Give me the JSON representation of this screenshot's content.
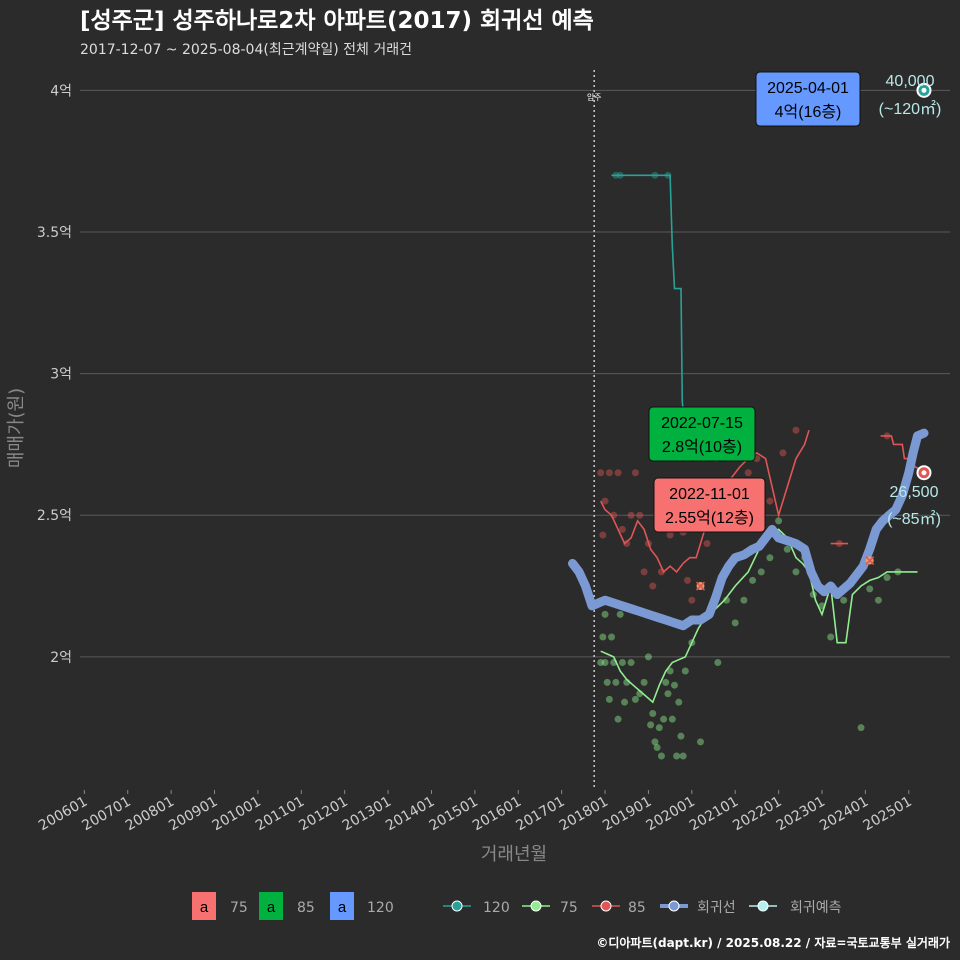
{
  "title": "[성주군] 성주하나로2차 아파트(2017) 회귀선 예측",
  "subtitle": "2017-12-07 ~ 2025-08-04(최근계약일) 전체 거래건",
  "caption": "©디아파트(dapt.kr) / 2025.08.22 / 자료=국토교통부 실거래가",
  "chart_data": {
    "type": "scatter",
    "xlabel": "거래년월",
    "ylabel": "매매가(원)",
    "xlim": [
      2005.9,
      2025.95
    ],
    "ylim": [
      1.53,
      4.1
    ],
    "x_ticks": [
      {
        "value": 2006.0,
        "label": "200601"
      },
      {
        "value": 2007.0,
        "label": "200701"
      },
      {
        "value": 2008.0,
        "label": "200801"
      },
      {
        "value": 2009.0,
        "label": "200901"
      },
      {
        "value": 2010.0,
        "label": "201001"
      },
      {
        "value": 2011.0,
        "label": "201101"
      },
      {
        "value": 2012.0,
        "label": "201201"
      },
      {
        "value": 2013.0,
        "label": "201301"
      },
      {
        "value": 2014.0,
        "label": "201401"
      },
      {
        "value": 2015.0,
        "label": "201501"
      },
      {
        "value": 2016.0,
        "label": "201601"
      },
      {
        "value": 2017.0,
        "label": "201701"
      },
      {
        "value": 2018.0,
        "label": "201801"
      },
      {
        "value": 2019.0,
        "label": "201901"
      },
      {
        "value": 2020.0,
        "label": "202001"
      },
      {
        "value": 2021.0,
        "label": "202101"
      },
      {
        "value": 2022.0,
        "label": "202201"
      },
      {
        "value": 2023.0,
        "label": "202301"
      },
      {
        "value": 2024.0,
        "label": "202401"
      },
      {
        "value": 2025.0,
        "label": "202501"
      }
    ],
    "y_ticks": [
      {
        "value": 2.0,
        "label": "2억"
      },
      {
        "value": 2.5,
        "label": "2.5억"
      },
      {
        "value": 3.0,
        "label": "3억"
      },
      {
        "value": 3.5,
        "label": "3.5억"
      },
      {
        "value": 4.0,
        "label": "4억"
      }
    ],
    "move_in": {
      "x": 2017.75,
      "label": "입주"
    },
    "series": [
      {
        "name": "120",
        "color": "#2aa198",
        "line": [
          [
            2018.15,
            3.7
          ],
          [
            2018.3,
            3.7
          ],
          [
            2019.1,
            3.7
          ],
          [
            2019.5,
            3.7
          ],
          [
            2019.55,
            3.45
          ],
          [
            2019.6,
            3.3
          ],
          [
            2019.75,
            3.3
          ],
          [
            2019.78,
            2.9
          ],
          [
            2019.85,
            2.8
          ]
        ],
        "points": [
          [
            2018.25,
            3.7
          ],
          [
            2018.35,
            3.7
          ],
          [
            2019.15,
            3.7
          ],
          [
            2019.45,
            3.7
          ]
        ]
      },
      {
        "name": "75",
        "color": "#90ee90",
        "line": [
          [
            2017.9,
            2.02
          ],
          [
            2018.05,
            2.01
          ],
          [
            2018.2,
            2.0
          ],
          [
            2018.35,
            1.95
          ],
          [
            2018.5,
            1.92
          ],
          [
            2018.65,
            1.9
          ],
          [
            2018.8,
            1.88
          ],
          [
            2018.95,
            1.86
          ],
          [
            2019.1,
            1.84
          ],
          [
            2019.25,
            1.9
          ],
          [
            2019.4,
            1.95
          ],
          [
            2019.55,
            1.98
          ],
          [
            2019.7,
            1.99
          ],
          [
            2019.85,
            2.0
          ],
          [
            2020.0,
            2.05
          ],
          [
            2020.15,
            2.1
          ],
          [
            2020.35,
            2.15
          ],
          [
            2020.55,
            2.17
          ],
          [
            2020.75,
            2.2
          ],
          [
            2021.0,
            2.25
          ],
          [
            2021.3,
            2.3
          ],
          [
            2021.55,
            2.38
          ],
          [
            2021.75,
            2.43
          ],
          [
            2022.0,
            2.45
          ],
          [
            2022.2,
            2.42
          ],
          [
            2022.4,
            2.35
          ],
          [
            2022.55,
            2.33
          ],
          [
            2022.7,
            2.3
          ],
          [
            2022.85,
            2.2
          ],
          [
            2023.0,
            2.15
          ],
          [
            2023.2,
            2.25
          ],
          [
            2023.35,
            2.05
          ],
          [
            2023.55,
            2.05
          ],
          [
            2023.7,
            2.22
          ],
          [
            2023.9,
            2.25
          ],
          [
            2024.1,
            2.27
          ],
          [
            2024.3,
            2.28
          ],
          [
            2024.5,
            2.3
          ],
          [
            2024.75,
            2.3
          ],
          [
            2025.0,
            2.3
          ],
          [
            2025.2,
            2.3
          ]
        ],
        "points": [
          [
            2017.9,
            1.98
          ],
          [
            2017.95,
            2.07
          ],
          [
            2018.0,
            2.15
          ],
          [
            2018.0,
            1.98
          ],
          [
            2018.05,
            1.91
          ],
          [
            2018.1,
            1.85
          ],
          [
            2018.15,
            2.07
          ],
          [
            2018.2,
            1.98
          ],
          [
            2018.25,
            1.91
          ],
          [
            2018.3,
            1.78
          ],
          [
            2018.35,
            2.15
          ],
          [
            2018.4,
            1.98
          ],
          [
            2018.45,
            1.84
          ],
          [
            2018.5,
            1.91
          ],
          [
            2018.6,
            1.98
          ],
          [
            2018.7,
            1.85
          ],
          [
            2018.8,
            1.87
          ],
          [
            2018.9,
            1.91
          ],
          [
            2019.0,
            2.0
          ],
          [
            2019.05,
            1.76
          ],
          [
            2019.1,
            1.8
          ],
          [
            2019.15,
            1.7
          ],
          [
            2019.2,
            1.68
          ],
          [
            2019.25,
            1.75
          ],
          [
            2019.3,
            1.65
          ],
          [
            2019.35,
            1.78
          ],
          [
            2019.4,
            1.91
          ],
          [
            2019.45,
            1.87
          ],
          [
            2019.5,
            1.95
          ],
          [
            2019.55,
            1.78
          ],
          [
            2019.6,
            1.9
          ],
          [
            2019.65,
            1.65
          ],
          [
            2019.7,
            1.84
          ],
          [
            2019.75,
            1.72
          ],
          [
            2019.8,
            1.65
          ],
          [
            2019.85,
            1.95
          ],
          [
            2020.0,
            2.05
          ],
          [
            2020.2,
            1.7
          ],
          [
            2020.4,
            2.15
          ],
          [
            2020.6,
            1.98
          ],
          [
            2020.8,
            2.2
          ],
          [
            2021.0,
            2.12
          ],
          [
            2021.2,
            2.2
          ],
          [
            2021.4,
            2.27
          ],
          [
            2021.6,
            2.3
          ],
          [
            2021.8,
            2.35
          ],
          [
            2022.0,
            2.48
          ],
          [
            2022.2,
            2.38
          ],
          [
            2022.4,
            2.3
          ],
          [
            2022.6,
            2.35
          ],
          [
            2022.8,
            2.22
          ],
          [
            2023.0,
            2.18
          ],
          [
            2023.2,
            2.07
          ],
          [
            2023.5,
            2.2
          ],
          [
            2023.9,
            1.75
          ],
          [
            2024.1,
            2.24
          ],
          [
            2024.3,
            2.2
          ],
          [
            2024.5,
            2.28
          ],
          [
            2024.75,
            2.3
          ]
        ]
      },
      {
        "name": "85",
        "color": "#e05555",
        "line": [
          [
            2017.9,
            2.55
          ],
          [
            2018.0,
            2.52
          ],
          [
            2018.15,
            2.5
          ],
          [
            2018.3,
            2.45
          ],
          [
            2018.45,
            2.4
          ],
          [
            2018.6,
            2.42
          ],
          [
            2018.75,
            2.48
          ],
          [
            2018.9,
            2.45
          ],
          [
            2019.05,
            2.38
          ],
          [
            2019.2,
            2.35
          ],
          [
            2019.35,
            2.3
          ],
          [
            2019.5,
            2.32
          ],
          [
            2019.65,
            2.3
          ],
          [
            2019.8,
            2.33
          ],
          [
            2019.95,
            2.35
          ],
          [
            2020.1,
            2.35
          ],
          [
            2020.3,
            2.45
          ],
          [
            2020.5,
            2.5
          ],
          [
            2020.7,
            2.58
          ],
          [
            2020.9,
            2.63
          ],
          [
            2021.1,
            2.67
          ],
          [
            2021.3,
            2.7
          ],
          [
            2021.5,
            2.72
          ],
          [
            2021.7,
            2.7
          ],
          [
            2021.85,
            2.6
          ],
          [
            2022.0,
            2.5
          ],
          [
            2022.2,
            2.6
          ],
          [
            2022.4,
            2.7
          ],
          [
            2022.6,
            2.75
          ],
          [
            2022.7,
            2.8
          ]
        ],
        "line2": [
          [
            2023.2,
            2.4
          ],
          [
            2023.6,
            2.4
          ]
        ],
        "line3": [
          [
            2024.35,
            2.78
          ],
          [
            2024.6,
            2.78
          ],
          [
            2024.65,
            2.75
          ],
          [
            2024.85,
            2.75
          ],
          [
            2024.9,
            2.7
          ],
          [
            2025.05,
            2.7
          ],
          [
            2025.15,
            2.67
          ],
          [
            2025.3,
            2.66
          ]
        ],
        "points": [
          [
            2017.9,
            2.65
          ],
          [
            2017.95,
            2.43
          ],
          [
            2018.0,
            2.55
          ],
          [
            2018.1,
            2.65
          ],
          [
            2018.2,
            2.5
          ],
          [
            2018.3,
            2.65
          ],
          [
            2018.4,
            2.45
          ],
          [
            2018.5,
            2.4
          ],
          [
            2018.6,
            2.5
          ],
          [
            2018.7,
            2.65
          ],
          [
            2018.8,
            2.5
          ],
          [
            2018.9,
            2.3
          ],
          [
            2019.0,
            2.4
          ],
          [
            2019.1,
            2.25
          ],
          [
            2019.2,
            2.47
          ],
          [
            2019.3,
            2.3
          ],
          [
            2019.4,
            2.5
          ],
          [
            2019.5,
            2.43
          ],
          [
            2019.6,
            2.45
          ],
          [
            2019.7,
            2.55
          ],
          [
            2019.8,
            2.44
          ],
          [
            2019.9,
            2.27
          ],
          [
            2020.0,
            2.2
          ],
          [
            2020.2,
            2.25
          ],
          [
            2020.35,
            2.4
          ],
          [
            2020.55,
            2.7
          ],
          [
            2020.8,
            2.6
          ],
          [
            2021.0,
            2.62
          ],
          [
            2021.3,
            2.65
          ],
          [
            2021.5,
            2.7
          ],
          [
            2021.8,
            2.55
          ],
          [
            2022.1,
            2.72
          ],
          [
            2022.4,
            2.8
          ],
          [
            2023.4,
            2.4
          ],
          [
            2024.5,
            2.78
          ]
        ]
      }
    ],
    "regression": {
      "name": "회귀선",
      "color": "#7b9ad4",
      "points": [
        [
          2017.25,
          2.33
        ],
        [
          2017.4,
          2.3
        ],
        [
          2017.55,
          2.25
        ],
        [
          2017.7,
          2.18
        ],
        [
          2017.85,
          2.19
        ],
        [
          2018.0,
          2.2
        ],
        [
          2018.2,
          2.19
        ],
        [
          2018.4,
          2.18
        ],
        [
          2018.6,
          2.17
        ],
        [
          2018.8,
          2.16
        ],
        [
          2019.0,
          2.15
        ],
        [
          2019.2,
          2.14
        ],
        [
          2019.4,
          2.13
        ],
        [
          2019.6,
          2.12
        ],
        [
          2019.8,
          2.11
        ],
        [
          2020.0,
          2.13
        ],
        [
          2020.2,
          2.13
        ],
        [
          2020.4,
          2.15
        ],
        [
          2020.55,
          2.21
        ],
        [
          2020.7,
          2.28
        ],
        [
          2020.85,
          2.32
        ],
        [
          2021.0,
          2.35
        ],
        [
          2021.2,
          2.36
        ],
        [
          2021.4,
          2.38
        ],
        [
          2021.55,
          2.39
        ],
        [
          2021.7,
          2.42
        ],
        [
          2021.85,
          2.45
        ],
        [
          2022.0,
          2.42
        ],
        [
          2022.2,
          2.41
        ],
        [
          2022.4,
          2.4
        ],
        [
          2022.6,
          2.38
        ],
        [
          2022.75,
          2.3
        ],
        [
          2022.9,
          2.25
        ],
        [
          2023.05,
          2.23
        ],
        [
          2023.2,
          2.25
        ],
        [
          2023.35,
          2.22
        ],
        [
          2023.5,
          2.24
        ],
        [
          2023.65,
          2.26
        ],
        [
          2023.8,
          2.29
        ],
        [
          2023.95,
          2.32
        ],
        [
          2024.1,
          2.38
        ],
        [
          2024.25,
          2.45
        ],
        [
          2024.4,
          2.48
        ],
        [
          2024.55,
          2.5
        ],
        [
          2024.7,
          2.52
        ],
        [
          2024.85,
          2.57
        ],
        [
          2025.0,
          2.65
        ],
        [
          2025.1,
          2.72
        ],
        [
          2025.2,
          2.78
        ],
        [
          2025.35,
          2.79
        ]
      ]
    },
    "forecast_points": [
      {
        "series": "120",
        "x": 2025.35,
        "y": 4.0,
        "color": "#2aa198"
      },
      {
        "series": "85",
        "x": 2025.35,
        "y": 2.65,
        "color": "#e05555"
      }
    ],
    "crosses": [
      [
        2020.2,
        2.25
      ],
      [
        2024.1,
        2.34
      ]
    ],
    "callouts": [
      {
        "date": "2025-04-01",
        "value": "4억(16층)",
        "series": "120",
        "fill": "#6699ff",
        "x": 2025.25,
        "y": 4.0
      },
      {
        "date": "2022-07-15",
        "value": "2.8억(10층)",
        "series": "85",
        "fill": "#00b140",
        "x": 2022.55,
        "y": 2.8
      },
      {
        "date": "2022-11-01",
        "value": "2.55억(12층)",
        "series": "75",
        "fill": "#f87171",
        "x": 2022.85,
        "y": 2.55
      }
    ],
    "side_labels": [
      {
        "price": "40,000",
        "area": "(~120㎡)",
        "x": 2025.35,
        "y": 4.0
      },
      {
        "price": "26,500",
        "area": "(~85㎡)",
        "x": 2025.35,
        "y": 2.65
      }
    ],
    "legend_fill": [
      {
        "label": "75",
        "glyph": "a",
        "color": "#f87171"
      },
      {
        "label": "85",
        "glyph": "a",
        "color": "#00b140"
      },
      {
        "label": "120",
        "glyph": "a",
        "color": "#6699ff"
      }
    ],
    "legend_lines": [
      {
        "label": "120",
        "color": "#2aa198"
      },
      {
        "label": "75",
        "color": "#90ee90"
      },
      {
        "label": "85",
        "color": "#e05555"
      },
      {
        "label": "회귀선",
        "color": "#7b9ad4"
      },
      {
        "label": "회귀예측",
        "color": "#b3f0f0"
      }
    ]
  }
}
